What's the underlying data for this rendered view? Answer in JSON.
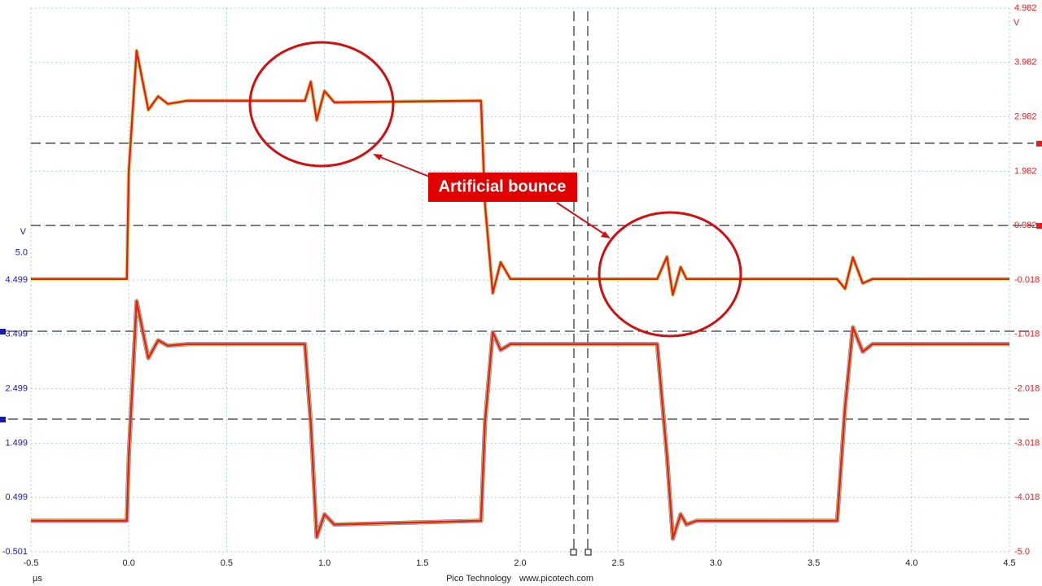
{
  "chart_data": {
    "type": "line",
    "y_label": "V",
    "y2_label": "V",
    "x_label": "µs",
    "footer": [
      "Pico Technology",
      "www.picotech.com"
    ],
    "annotation": "Artificial bounce",
    "xlim": [
      -0.5,
      4.5
    ],
    "xticks": [
      -0.5,
      {
        "value": 0,
        "label": "0.0"
      },
      0.5,
      {
        "value": 1,
        "label": "1.0"
      },
      1.5,
      {
        "value": 2,
        "label": "2.0"
      },
      2.5,
      {
        "value": 3,
        "label": "3.0"
      },
      3.5,
      {
        "value": 4,
        "label": "4.0"
      },
      4.5
    ],
    "ylim": [
      -0.501,
      9.499
    ],
    "yticks": [
      {
        "value": 5,
        "label": "5.0"
      },
      4.499,
      3.499,
      2.499,
      1.499,
      0.499,
      -0.501
    ],
    "y2lim": [
      -5.018,
      4.982
    ],
    "y2ticks": [
      4.982,
      3.982,
      2.982,
      1.982,
      0.982,
      -0.018,
      -1.018,
      -2.018,
      -3.018,
      -4.018,
      {
        "value": -5.018,
        "label": "-5.0"
      }
    ],
    "grid": true,
    "x": [
      -0.5,
      -0.01,
      0.0,
      0.04,
      0.1,
      0.15,
      0.2,
      0.3,
      0.9,
      0.93,
      0.96,
      1.0,
      1.05,
      1.8,
      1.82,
      1.86,
      1.9,
      1.95,
      2.0,
      2.7,
      2.75,
      2.78,
      2.82,
      2.85,
      2.9,
      3.6,
      3.62,
      3.66,
      3.7,
      3.75,
      3.8,
      4.5
    ],
    "series": [
      {
        "color": "#e8201c",
        "axis": "y2",
        "values": [
          0.0,
          0.0,
          1.98,
          4.2,
          3.11,
          3.36,
          3.22,
          3.28,
          3.28,
          3.63,
          2.92,
          3.46,
          3.25,
          3.28,
          1.39,
          -0.26,
          0.31,
          0.0,
          0.0,
          0.0,
          0.41,
          -0.29,
          0.22,
          0.0,
          0.0,
          0.0,
          0.0,
          -0.18,
          0.4,
          -0.08,
          0.0,
          0.0
        ]
      },
      {
        "color": "#e8201c",
        "axis": "y",
        "values": [
          0.07,
          0.07,
          1.26,
          4.11,
          3.06,
          3.39,
          3.29,
          3.32,
          3.32,
          1.86,
          -0.23,
          0.19,
          0.0,
          0.07,
          1.86,
          3.54,
          3.21,
          3.32,
          3.32,
          3.32,
          1.26,
          -0.26,
          0.19,
          0.0,
          0.07,
          0.07,
          0.07,
          2.16,
          3.63,
          3.18,
          3.32,
          3.32
        ]
      }
    ]
  }
}
